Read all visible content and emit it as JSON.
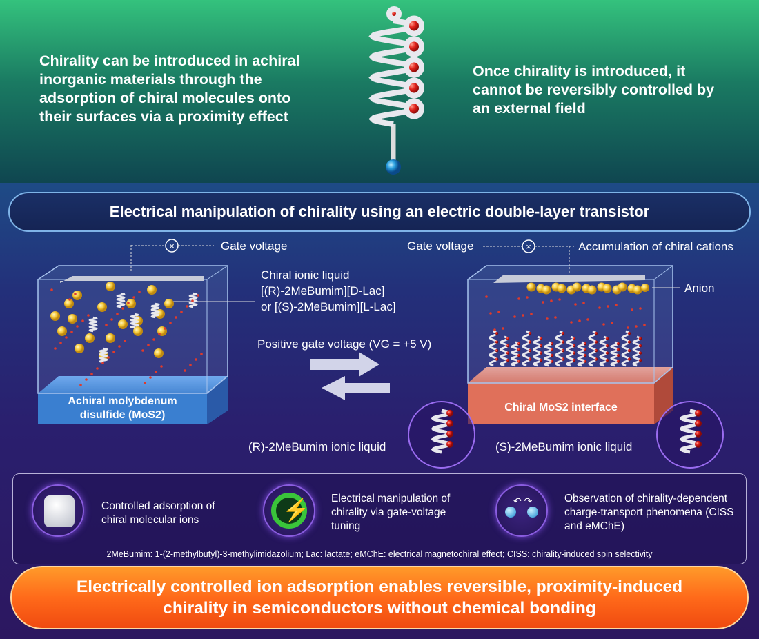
{
  "top": {
    "left_text": "Chirality can be introduced in achiral inorganic materials through the adsorption of chiral molecules onto their surfaces via a proximity effect",
    "right_text": "Once chirality is introduced, it cannot be reversibly controlled by an external field"
  },
  "banner": "Electrical manipulation of chirality using an electric double-layer transistor",
  "left_device": {
    "gate_label": "Gate voltage",
    "liquid_label": [
      "Chiral ionic liquid",
      "[(R)-2MeBumim][D-Lac]",
      "or [(S)-2MeBumim][L-Lac]"
    ],
    "substrate_label": [
      "Achiral molybdenum",
      "disulfide (MoS2)"
    ],
    "ion_label": "(R)-2MeBumim ionic liquid"
  },
  "arrow_label": "Positive gate voltage (VG = +5 V)",
  "right_device": {
    "gate_label": "Gate voltage",
    "accumulation_label": "Accumulation of chiral cations",
    "anion_label": "Anion",
    "substrate_label": "Chiral MoS2 interface",
    "ion_label": "(S)-2MeBumim ionic liquid"
  },
  "features": [
    {
      "icon": "molecule-surface-icon",
      "text": "Controlled adsorption of chiral molecular ions"
    },
    {
      "icon": "lightning-icon",
      "text": "Electrical manipulation of chirality via gate-voltage tuning"
    },
    {
      "icon": "spin-transport-icon",
      "text": "Observation of chirality-dependent charge-transport phenomena (CISS and eMChE)"
    }
  ],
  "footnote": "2MeBumim: 1-(2-methylbutyl)-3-methylimidazolium; Lac: lactate; eMChE: electrical magnetochiral effect; CISS: chirality-induced spin selectivity",
  "conclusion": "Electrically controlled ion adsorption enables reversible, proximity-induced chirality in semiconductors without chemical bonding",
  "colors": {
    "top_green": "#34c27d",
    "banner_border": "#7fb4e8",
    "achiral_blue": "#3a7fd0",
    "chiral_salmon": "#e0705a",
    "anion_yellow": "#f5c93a",
    "conclusion_orange": "#ff6a1a"
  }
}
